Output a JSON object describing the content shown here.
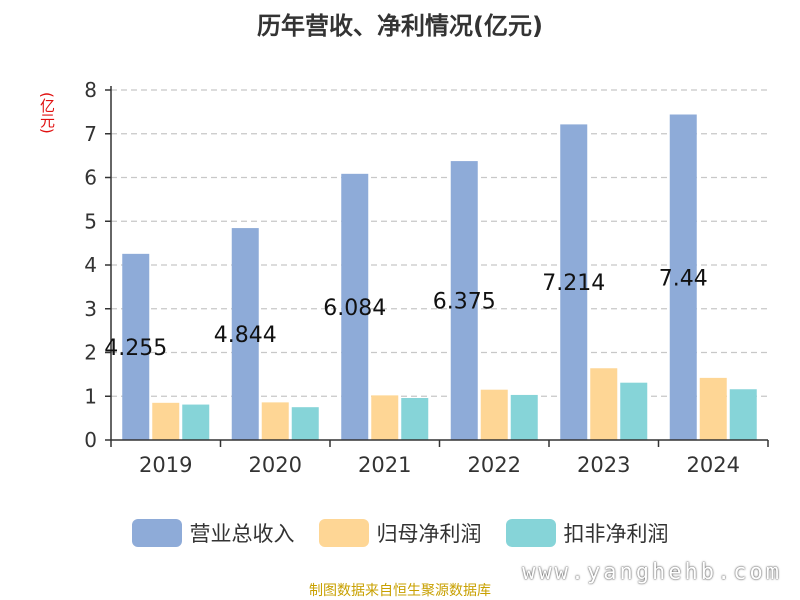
{
  "title": "历年营收、净利情况(亿元)",
  "unit_label": "(亿元)",
  "source": "制图数据来自恒生聚源数据库",
  "watermark": "www.yanghehb.com",
  "chart_data": {
    "type": "bar",
    "categories": [
      "2019",
      "2020",
      "2021",
      "2022",
      "2023",
      "2024"
    ],
    "series": [
      {
        "name": "营业总收入",
        "color": "#8eabd8",
        "values": [
          4.255,
          4.844,
          6.084,
          6.375,
          7.214,
          7.44
        ]
      },
      {
        "name": "归母净利润",
        "color": "#fed695",
        "values": [
          0.85,
          0.86,
          1.02,
          1.15,
          1.64,
          1.42
        ]
      },
      {
        "name": "扣非净利润",
        "color": "#86d4d8",
        "values": [
          0.81,
          0.75,
          0.96,
          1.03,
          1.31,
          1.16
        ]
      }
    ],
    "data_labels": [
      "4.255",
      "4.844",
      "6.084",
      "6.375",
      "7.214",
      "7.44"
    ],
    "yticks": [
      0,
      1,
      2,
      3,
      4,
      5,
      6,
      7,
      8
    ],
    "ylim": [
      0,
      8
    ],
    "grid": true,
    "legend_position": "bottom"
  }
}
